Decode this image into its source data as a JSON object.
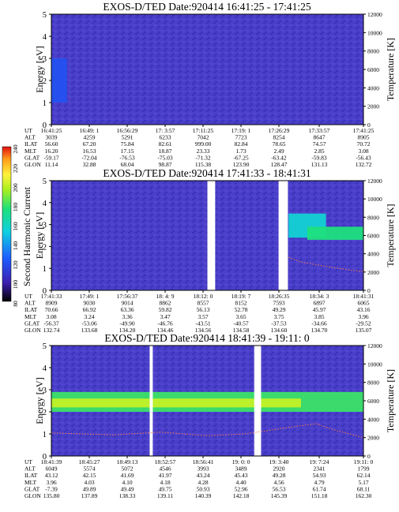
{
  "colorbar": {
    "title": "Second Harmonic Current",
    "ticks": [
      "240",
      "220",
      "200",
      "180",
      "160",
      "140",
      "120",
      "100",
      "80"
    ]
  },
  "panels": [
    {
      "title": "EXOS-D/TED   Date:920414   16:41:25 - 17:41:25",
      "ylabel": "Energy [eV]",
      "ylabel2": "Temperature [K]",
      "yticks": [
        "0",
        "1",
        "2",
        "3",
        "4",
        "5"
      ],
      "y2ticks": [
        "0",
        "2000",
        "4000",
        "6000",
        "8000",
        "10000",
        "12000"
      ],
      "table": [
        {
          "label": "UT",
          "values": [
            "16:41:25",
            "16:49: 1",
            "16:56:29",
            "17: 3:57",
            "17:11:25",
            "17:19: 1",
            "17:26:29",
            "17:33:57",
            "17:41:25"
          ]
        },
        {
          "label": "ALT",
          "values": [
            "3039",
            "4259",
            "5291",
            "6233",
            "7042",
            "7723",
            "8254",
            "8647",
            "8905"
          ]
        },
        {
          "label": "ILAT",
          "values": [
            "56.60",
            "67.20",
            "75.84",
            "82.61",
            "999.00",
            "82.84",
            "78.65",
            "74.57",
            "70.72"
          ]
        },
        {
          "label": "MLT",
          "values": [
            "16.20",
            "16.53",
            "17.15",
            "18.87",
            "23.33",
            "1.73",
            "2.49",
            "2.85",
            "3.08"
          ]
        },
        {
          "label": "GLAT",
          "values": [
            "-59.17",
            "-72.04",
            "-76.53",
            "-75.03",
            "-71.32",
            "-67.25",
            "-63.42",
            "-59.83",
            "-56.43"
          ]
        },
        {
          "label": "GLON",
          "values": [
            "11.14",
            "32.88",
            "68.04",
            "98.87",
            "115.38",
            "123.90",
            "128.47",
            "131.13",
            "132.72"
          ]
        }
      ]
    },
    {
      "title": "EXOS-D/TED   Date:920414   17:41:33 - 18:41:31",
      "ylabel": "Energy [eV]",
      "ylabel2": "Temperature [K]",
      "yticks": [
        "0",
        "1",
        "2",
        "3",
        "4",
        "5"
      ],
      "y2ticks": [
        "0",
        "2000",
        "4000",
        "6000",
        "8000",
        "10000",
        "12000"
      ],
      "table": [
        {
          "label": "UT",
          "values": [
            "17:41:33",
            "17:49: 1",
            "17:56:37",
            "18: 4: 9",
            "18:12: 0",
            "18:19: 7",
            "18:26:35",
            "18:34: 3",
            "18:41:31"
          ]
        },
        {
          "label": "ALT",
          "values": [
            "8909",
            "9030",
            "9014",
            "8862",
            "8557",
            "8152",
            "7593",
            "6897",
            "6065"
          ]
        },
        {
          "label": "ILAT",
          "values": [
            "70.66",
            "66.92",
            "63.36",
            "59.82",
            "56.13",
            "52.78",
            "49.29",
            "45.97",
            "43.16"
          ]
        },
        {
          "label": "MLT",
          "values": [
            "3.08",
            "3.24",
            "3.36",
            "3.47",
            "3.57",
            "3.65",
            "3.75",
            "3.85",
            "3.96"
          ]
        },
        {
          "label": "GLAT",
          "values": [
            "-56.37",
            "-53.06",
            "-49.90",
            "-46.76",
            "-43.51",
            "-40.57",
            "-37.53",
            "-34.66",
            "-29.52"
          ]
        },
        {
          "label": "GLON",
          "values": [
            "132.74",
            "133.68",
            "134.20",
            "134.46",
            "134.56",
            "134.58",
            "134.60",
            "134.70",
            "135.07"
          ]
        }
      ]
    },
    {
      "title": "EXOS-D/TED   Date:920414   18:41:39 - 19:11: 0",
      "ylabel": "Energy [eV]",
      "ylabel2": "Temperature [K]",
      "yticks": [
        "0",
        "1",
        "2",
        "3",
        "4",
        "5"
      ],
      "y2ticks": [
        "0",
        "2000",
        "4000",
        "6000",
        "8000",
        "10000",
        "12000"
      ],
      "table": [
        {
          "label": "UT",
          "values": [
            "18:41:39",
            "18:45:27",
            "18:49:13",
            "18:52:57",
            "18:56:41",
            "19: 0: 0",
            "19: 3:40",
            "19: 7:24",
            "19:11: 0"
          ]
        },
        {
          "label": "ALT",
          "values": [
            "6049",
            "5574",
            "5072",
            "4546",
            "3993",
            "3489",
            "2920",
            "2341",
            "1799"
          ]
        },
        {
          "label": "ILAT",
          "values": [
            "43.12",
            "42.15",
            "41.69",
            "41.97",
            "43.24",
            "45.43",
            "49.28",
            "54.93",
            "62.14"
          ]
        },
        {
          "label": "MLT",
          "values": [
            "3.96",
            "4.03",
            "4.10",
            "4.18",
            "4.28",
            "4.40",
            "4.56",
            "4.79",
            "5.17"
          ]
        },
        {
          "label": "GLAT",
          "values": [
            "-7.39",
            "49.89",
            "49.49",
            "49.75",
            "50.93",
            "52.96",
            "56.53",
            "61.74",
            "68.11"
          ]
        },
        {
          "label": "GLON",
          "values": [
            "135.80",
            "137.89",
            "138.33",
            "139.11",
            "140.39",
            "142.18",
            "145.39",
            "151.18",
            "162.30"
          ]
        }
      ]
    }
  ],
  "chart_data": [
    {
      "type": "heatmap",
      "title": "EXOS-D/TED   Date:920414   16:41:25 - 17:41:25",
      "ylabel": "Energy [eV]",
      "y2label": "Temperature [K]",
      "ylim": [
        0,
        5
      ],
      "y2lim": [
        0,
        12000
      ],
      "xticks": [
        "16:41:25",
        "16:49: 1",
        "16:56:29",
        "17: 3:57",
        "17:11:25",
        "17:19: 1",
        "17:26:29",
        "17:33:57",
        "17:41:25"
      ],
      "color_range": [
        80,
        240
      ],
      "data_gaps": [],
      "bands": [
        {
          "x_from": 0.0,
          "x_to": 0.05,
          "energy_from": 1.0,
          "energy_to": 3.0,
          "value": 120
        }
      ],
      "temperature": []
    },
    {
      "type": "heatmap",
      "title": "EXOS-D/TED   Date:920414   17:41:33 - 18:41:31",
      "ylabel": "Energy [eV]",
      "y2label": "Temperature [K]",
      "ylim": [
        0,
        5
      ],
      "y2lim": [
        0,
        12000
      ],
      "xticks": [
        "17:41:33",
        "17:49: 1",
        "17:56:37",
        "18: 4: 9",
        "18:12: 0",
        "18:19: 7",
        "18:26:35",
        "18:34: 3",
        "18:41:31"
      ],
      "color_range": [
        80,
        240
      ],
      "data_gaps": [
        [
          0.5,
          0.525
        ],
        [
          0.728,
          0.758
        ]
      ],
      "bands": [
        {
          "x_from": 0.76,
          "x_to": 0.88,
          "energy_from": 2.4,
          "energy_to": 3.5,
          "value": 155
        },
        {
          "x_from": 0.82,
          "x_to": 1.0,
          "energy_from": 2.3,
          "energy_to": 2.9,
          "value": 175
        }
      ],
      "temperature": [
        {
          "x": 0.76,
          "y": 3600
        },
        {
          "x": 0.8,
          "y": 3100
        },
        {
          "x": 0.85,
          "y": 2800
        },
        {
          "x": 0.9,
          "y": 2500
        },
        {
          "x": 0.95,
          "y": 2250
        },
        {
          "x": 1.0,
          "y": 2050
        }
      ]
    },
    {
      "type": "heatmap",
      "title": "EXOS-D/TED   Date:920414   18:41:39 - 19:11: 0",
      "ylabel": "Energy [eV]",
      "y2label": "Temperature [K]",
      "ylim": [
        0,
        5
      ],
      "y2lim": [
        0,
        12000
      ],
      "xticks": [
        "18:41:39",
        "18:45:27",
        "18:49:13",
        "18:52:57",
        "18:56:41",
        "19: 0: 0",
        "19: 3:40",
        "19: 7:24",
        "19:11: 0"
      ],
      "color_range": [
        80,
        240
      ],
      "data_gaps": [
        [
          0.315,
          0.325
        ],
        [
          0.65,
          0.672
        ]
      ],
      "bands": [
        {
          "x_from": 0.0,
          "x_to": 1.0,
          "energy_from": 2.0,
          "energy_to": 2.9,
          "value": 180
        },
        {
          "x_from": 0.0,
          "x_to": 0.8,
          "energy_from": 2.2,
          "energy_to": 2.6,
          "value": 200
        }
      ],
      "temperature": [
        {
          "x": 0.0,
          "y": 2500
        },
        {
          "x": 0.1,
          "y": 2400
        },
        {
          "x": 0.2,
          "y": 2300
        },
        {
          "x": 0.35,
          "y": 2600
        },
        {
          "x": 0.5,
          "y": 2200
        },
        {
          "x": 0.62,
          "y": 2400
        },
        {
          "x": 0.72,
          "y": 2900
        },
        {
          "x": 0.8,
          "y": 3300
        },
        {
          "x": 0.85,
          "y": 3500
        },
        {
          "x": 0.9,
          "y": 2900
        },
        {
          "x": 1.0,
          "y": 2000
        }
      ]
    }
  ]
}
